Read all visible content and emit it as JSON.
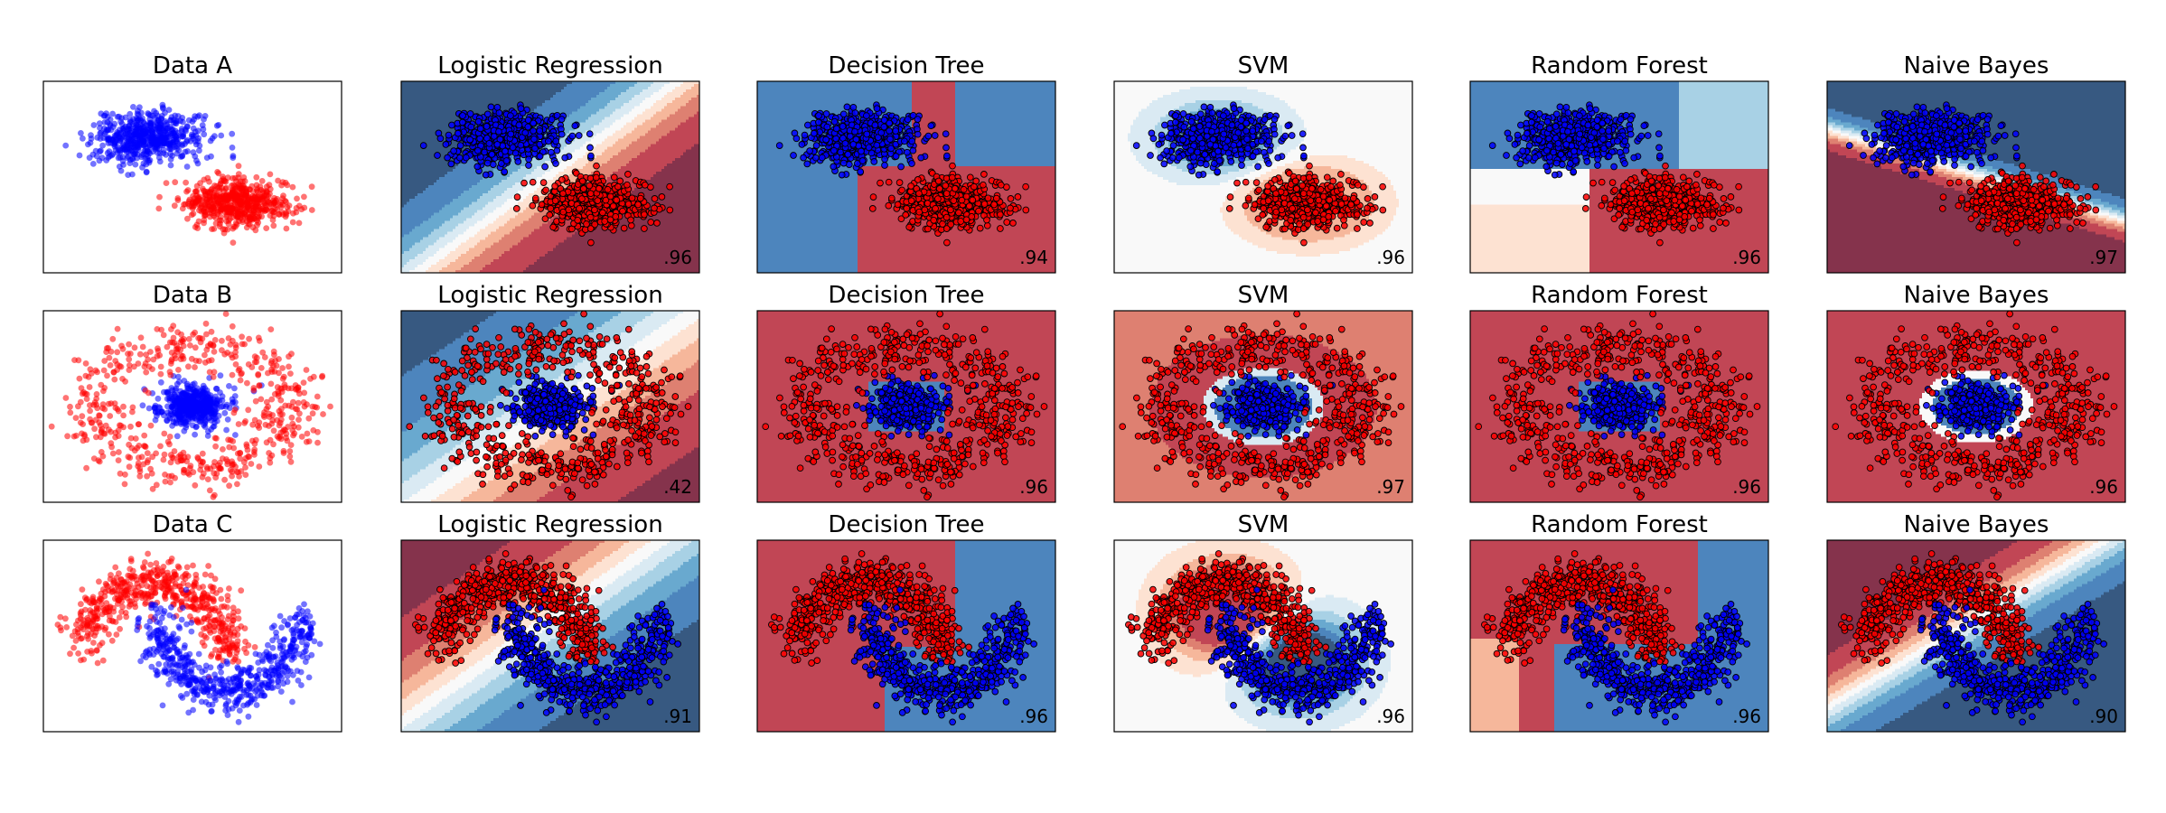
{
  "colors": {
    "class_0_point": "#0000ff",
    "class_1_point": "#ff0000",
    "background_colormap": "RdBu"
  },
  "chart_data": [
    {
      "type": "scatter",
      "title": "Data A",
      "dataset": "A",
      "axes": {
        "ticks": false,
        "grid": false
      },
      "score": null,
      "series": [
        {
          "class": 0,
          "center": [
            -0.9,
            0.9
          ],
          "spread": [
            0.55,
            0.3
          ]
        },
        {
          "class": 1,
          "center": [
            0.9,
            -0.6
          ],
          "spread": [
            0.55,
            0.28
          ]
        }
      ]
    },
    {
      "type": "scatter",
      "title": "Logistic Regression",
      "dataset": "A",
      "score": ".96",
      "decision": "linear",
      "axes": {
        "ticks": false,
        "grid": false
      }
    },
    {
      "type": "scatter",
      "title": "Decision Tree",
      "dataset": "A",
      "score": ".94",
      "decision": "tree",
      "axes": {
        "ticks": false,
        "grid": false
      }
    },
    {
      "type": "scatter",
      "title": "SVM",
      "dataset": "A",
      "score": ".96",
      "decision": "rbf",
      "axes": {
        "ticks": false,
        "grid": false
      }
    },
    {
      "type": "scatter",
      "title": "Random Forest",
      "dataset": "A",
      "score": ".96",
      "decision": "forest",
      "axes": {
        "ticks": false,
        "grid": false
      }
    },
    {
      "type": "scatter",
      "title": "Naive Bayes",
      "dataset": "A",
      "score": ".97",
      "decision": "gaussian",
      "axes": {
        "ticks": false,
        "grid": false
      }
    },
    {
      "type": "scatter",
      "title": "Data B",
      "dataset": "B",
      "axes": {
        "ticks": false,
        "grid": false
      },
      "score": null,
      "series": [
        {
          "class": 0,
          "shape": "inner-cluster",
          "radius": 0.4
        },
        {
          "class": 1,
          "shape": "outer-ring",
          "radius": 1.0
        }
      ]
    },
    {
      "type": "scatter",
      "title": "Logistic Regression",
      "dataset": "B",
      "score": ".42",
      "decision": "linear",
      "axes": {
        "ticks": false,
        "grid": false
      }
    },
    {
      "type": "scatter",
      "title": "Decision Tree",
      "dataset": "B",
      "score": ".96",
      "decision": "tree",
      "axes": {
        "ticks": false,
        "grid": false
      }
    },
    {
      "type": "scatter",
      "title": "SVM",
      "dataset": "B",
      "score": ".97",
      "decision": "rbf",
      "axes": {
        "ticks": false,
        "grid": false
      }
    },
    {
      "type": "scatter",
      "title": "Random Forest",
      "dataset": "B",
      "score": ".96",
      "decision": "forest",
      "axes": {
        "ticks": false,
        "grid": false
      }
    },
    {
      "type": "scatter",
      "title": "Naive Bayes",
      "dataset": "B",
      "score": ".96",
      "decision": "gaussian",
      "axes": {
        "ticks": false,
        "grid": false
      }
    },
    {
      "type": "scatter",
      "title": "Data C",
      "dataset": "C",
      "axes": {
        "ticks": false,
        "grid": false
      },
      "score": null,
      "series": [
        {
          "class": 1,
          "shape": "upper-moon"
        },
        {
          "class": 0,
          "shape": "lower-moon"
        }
      ]
    },
    {
      "type": "scatter",
      "title": "Logistic Regression",
      "dataset": "C",
      "score": ".91",
      "decision": "linear",
      "axes": {
        "ticks": false,
        "grid": false
      }
    },
    {
      "type": "scatter",
      "title": "Decision Tree",
      "dataset": "C",
      "score": ".96",
      "decision": "tree",
      "axes": {
        "ticks": false,
        "grid": false
      }
    },
    {
      "type": "scatter",
      "title": "SVM",
      "dataset": "C",
      "score": ".96",
      "decision": "rbf",
      "axes": {
        "ticks": false,
        "grid": false
      }
    },
    {
      "type": "scatter",
      "title": "Random Forest",
      "dataset": "C",
      "score": ".96",
      "decision": "forest",
      "axes": {
        "ticks": false,
        "grid": false
      }
    },
    {
      "type": "scatter",
      "title": "Naive Bayes",
      "dataset": "C",
      "score": ".90",
      "decision": "gaussian",
      "axes": {
        "ticks": false,
        "grid": false
      }
    }
  ]
}
